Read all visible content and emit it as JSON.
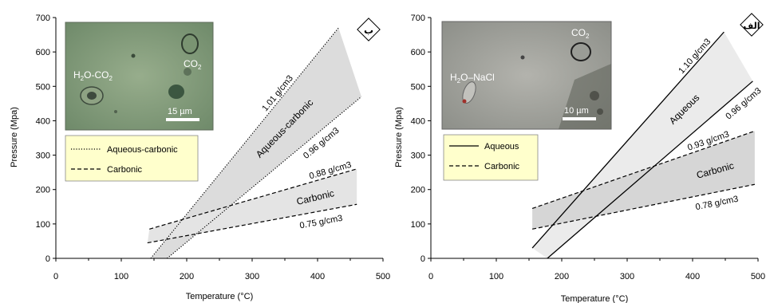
{
  "chart_data": [
    {
      "type": "line",
      "panel_label": "ب",
      "xlabel": "Temperature (°C)",
      "ylabel": "Pressure (Mpa)",
      "xlim": [
        0,
        500
      ],
      "ylim": [
        0,
        700
      ],
      "x_ticks": [
        0,
        100,
        200,
        300,
        400,
        500
      ],
      "y_ticks": [
        0,
        100,
        200,
        300,
        400,
        500,
        600,
        700
      ],
      "grid": false,
      "legend": {
        "position": "upper-left",
        "entries": [
          {
            "label": "Aqueous-carbonic",
            "style": "dotted"
          },
          {
            "label": "Carbonic",
            "style": "dashed"
          }
        ]
      },
      "photo_labels": {
        "left": "H2O-CO2",
        "right": "CO2",
        "scale": "15 µm"
      },
      "series": [
        {
          "label": "1.01 g/cm3",
          "style": "dotted",
          "x": [
            145,
            432
          ],
          "y": [
            0,
            670
          ]
        },
        {
          "label": "0.96 g/cm3",
          "style": "dotted",
          "x": [
            170,
            467
          ],
          "y": [
            0,
            470
          ]
        },
        {
          "label": "0.88 g/cm3",
          "style": "dashed",
          "x": [
            143,
            460
          ],
          "y": [
            85,
            260
          ]
        },
        {
          "label": "0.75 g/cm3",
          "style": "dashed",
          "x": [
            140,
            460
          ],
          "y": [
            45,
            157
          ]
        }
      ],
      "regions": [
        {
          "label": "Aqueous-carbonic",
          "between": [
            "1.01 g/cm3",
            "0.96 g/cm3"
          ]
        },
        {
          "label": "Carbonic",
          "between": [
            "0.88 g/cm3",
            "0.75 g/cm3"
          ]
        }
      ]
    },
    {
      "type": "line",
      "panel_label": "الف",
      "xlabel": "Temperature (°C)",
      "ylabel": "Pressure (Mpa)",
      "xlim": [
        0,
        500
      ],
      "ylim": [
        0,
        700
      ],
      "x_ticks": [
        0,
        100,
        200,
        300,
        400,
        500
      ],
      "y_ticks": [
        0,
        100,
        200,
        300,
        400,
        500,
        600,
        700
      ],
      "grid": false,
      "legend": {
        "position": "upper-left",
        "entries": [
          {
            "label": "Aqueous",
            "style": "solid"
          },
          {
            "label": "Carbonic",
            "style": "dashed"
          }
        ]
      },
      "photo_labels": {
        "left": "H2O–NaCl",
        "right": "CO2",
        "scale": "10 µm"
      },
      "series": [
        {
          "label": "1.10 g/cm3",
          "style": "solid",
          "x": [
            155,
            448
          ],
          "y": [
            30,
            658
          ]
        },
        {
          "label": "0.96 g/cm3",
          "style": "solid",
          "x": [
            178,
            492
          ],
          "y": [
            0,
            515
          ]
        },
        {
          "label": "0.93 g/cm3",
          "style": "dashed",
          "x": [
            155,
            495
          ],
          "y": [
            145,
            370
          ]
        },
        {
          "label": "0.78 g/cm3",
          "style": "dashed",
          "x": [
            155,
            495
          ],
          "y": [
            85,
            215
          ]
        }
      ],
      "regions": [
        {
          "label": "Aqueous",
          "between": [
            "1.10 g/cm3",
            "0.96 g/cm3"
          ]
        },
        {
          "label": "Carbonic",
          "between": [
            "0.93 g/cm3",
            "0.78 g/cm3"
          ]
        }
      ]
    }
  ]
}
